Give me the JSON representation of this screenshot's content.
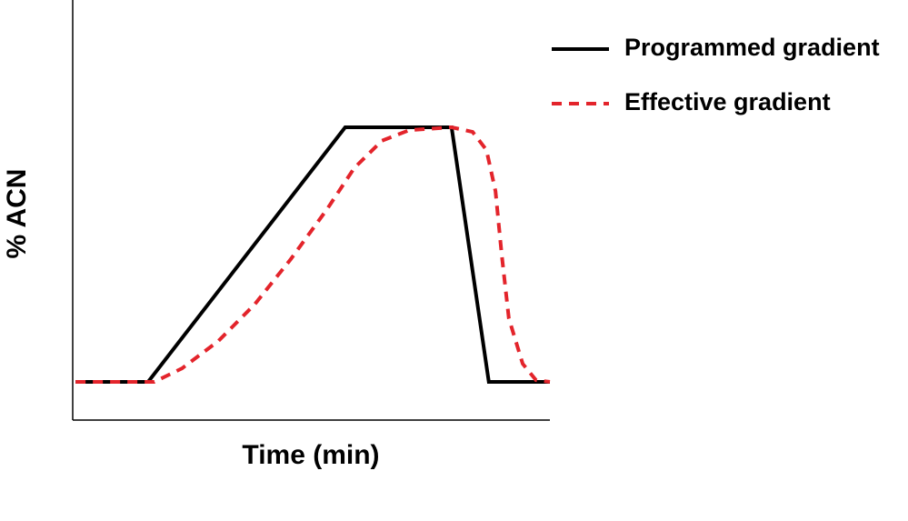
{
  "chart_data": {
    "type": "line",
    "x_label": "Time (min)",
    "y_label": "% ACN",
    "xlim": [
      0,
      100
    ],
    "ylim": [
      0,
      100
    ],
    "legend": "top-right",
    "series": [
      {
        "name": "Programmed gradient",
        "color": "#000000",
        "style": "solid",
        "x": [
          0.6,
          15.8,
          57.1,
          79.4,
          87.2,
          100
        ],
        "values": [
          9.1,
          9.1,
          69.7,
          69.7,
          9.1,
          9.1
        ]
      },
      {
        "name": "Effective gradient",
        "color": "#e3242b",
        "style": "dashed",
        "x": [
          0.6,
          17.1,
          22.9,
          30.5,
          38.1,
          45.7,
          53.3,
          59.0,
          64.8,
          70.5,
          79.4,
          83.8,
          86.7,
          88.6,
          89.9,
          91.4,
          94.3,
          97.1,
          100
        ],
        "values": [
          9.1,
          9.1,
          12.3,
          18.8,
          27.5,
          38.3,
          50.2,
          60.0,
          66.5,
          69.0,
          69.7,
          68.6,
          64.3,
          54.5,
          39.4,
          24.2,
          13.4,
          9.5,
          9.1
        ]
      }
    ]
  }
}
